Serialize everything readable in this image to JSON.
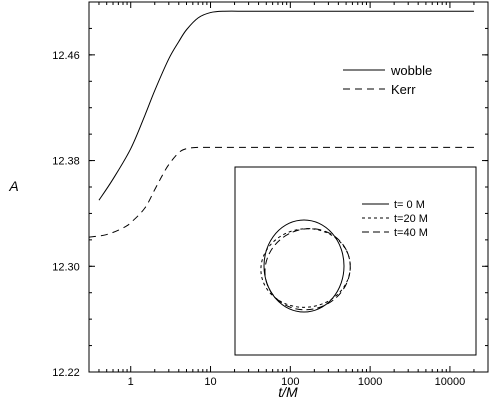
{
  "chart_data": [
    {
      "type": "line",
      "xlabel": "t/M",
      "ylabel": "A",
      "xscale": "log",
      "xlim": [
        0.3,
        30000
      ],
      "ylim": [
        12.22,
        12.5
      ],
      "xticks": [
        1,
        10,
        100,
        1000,
        10000
      ],
      "xtick_labels": [
        "1",
        "10",
        "100",
        "1000",
        "10000"
      ],
      "yticks": [
        12.22,
        12.3,
        12.38,
        12.46
      ],
      "ytick_labels": [
        "12.22",
        "12.30",
        "12.38",
        "12.46"
      ],
      "grid": false,
      "legend_position": "upper-right",
      "series": [
        {
          "name": "wobble",
          "style": "solid",
          "x": [
            0.4,
            0.6,
            1.0,
            1.5,
            2.0,
            3.0,
            4.0,
            5.0,
            7.0,
            10.0,
            15.0,
            30.0,
            100.0,
            1000.0,
            20000.0
          ],
          "y": [
            12.35,
            12.366,
            12.389,
            12.414,
            12.433,
            12.457,
            12.47,
            12.479,
            12.488,
            12.492,
            12.493,
            12.493,
            12.493,
            12.493,
            12.493
          ]
        },
        {
          "name": "Kerr",
          "style": "dashed",
          "x": [
            0.3,
            0.5,
            0.8,
            1.0,
            1.5,
            2.0,
            2.5,
            3.0,
            4.0,
            5.0,
            7.0,
            10.0,
            100.0,
            20000.0
          ],
          "y": [
            12.322,
            12.324,
            12.329,
            12.333,
            12.344,
            12.358,
            12.369,
            12.377,
            12.386,
            12.389,
            12.39,
            12.39,
            12.39,
            12.39
          ]
        }
      ]
    },
    {
      "type": "line",
      "subtype": "inset-contours",
      "legend_position": "top-right",
      "series": [
        {
          "name": "t= 0 M",
          "style": "solid",
          "center": [
            0.0,
            0.0
          ],
          "radii": [
            1.0,
            1.15
          ],
          "rotation_deg": 0
        },
        {
          "name": "t=20 M",
          "style": "short-dash",
          "center": [
            0.04,
            -0.05
          ],
          "radii": [
            1.12,
            0.98
          ],
          "rotation_deg": -8
        },
        {
          "name": "t=40 M",
          "style": "long-dash",
          "center": [
            0.09,
            -0.08
          ],
          "radii": [
            1.08,
            1.0
          ],
          "rotation_deg": -25
        }
      ]
    }
  ]
}
